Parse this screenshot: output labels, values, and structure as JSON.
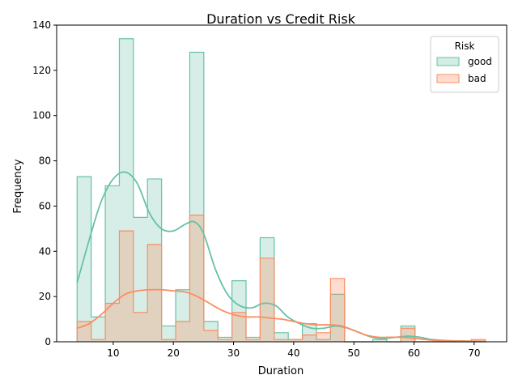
{
  "chart_data": {
    "type": "histogram",
    "title": "Duration vs Credit Risk",
    "xlabel": "Duration",
    "ylabel": "Frequency",
    "xlim": [
      0.6,
      75.4
    ],
    "ylim": [
      0,
      140
    ],
    "xticks": [
      10,
      20,
      30,
      40,
      50,
      60,
      70
    ],
    "yticks": [
      0,
      20,
      40,
      60,
      80,
      100,
      120,
      140
    ],
    "legend": {
      "title": "Risk",
      "position": "top-right"
    },
    "bin_edges": [
      4.0,
      6.34,
      8.68,
      11.02,
      13.36,
      15.7,
      18.04,
      20.38,
      22.72,
      25.06,
      27.4,
      29.74,
      32.08,
      34.42,
      36.76,
      39.1,
      41.44,
      43.78,
      46.12,
      48.46,
      50.8,
      53.14,
      55.48,
      57.82,
      60.16,
      62.5,
      64.84,
      67.18,
      69.52,
      71.86
    ],
    "series": [
      {
        "name": "good",
        "color": "#66c2a5",
        "counts": [
          73,
          11,
          69,
          134,
          55,
          72,
          7,
          23,
          128,
          9,
          2,
          27,
          2,
          46,
          4,
          1,
          8,
          1,
          21,
          0,
          0,
          1,
          0,
          7,
          0,
          0,
          0,
          0,
          0
        ],
        "kde": [
          [
            4,
            26
          ],
          [
            6,
            45
          ],
          [
            8,
            62
          ],
          [
            10,
            72
          ],
          [
            12,
            75
          ],
          [
            14,
            70
          ],
          [
            16,
            57
          ],
          [
            18,
            50
          ],
          [
            20,
            49
          ],
          [
            22,
            52
          ],
          [
            23.5,
            53
          ],
          [
            25,
            48
          ],
          [
            27,
            32
          ],
          [
            29,
            21
          ],
          [
            31,
            16
          ],
          [
            33,
            15
          ],
          [
            35,
            17
          ],
          [
            37,
            16
          ],
          [
            39,
            11
          ],
          [
            41,
            8
          ],
          [
            43,
            6
          ],
          [
            45,
            6
          ],
          [
            47,
            7
          ],
          [
            49,
            6
          ],
          [
            51,
            4
          ],
          [
            53,
            2
          ],
          [
            55,
            1.5
          ],
          [
            57,
            2
          ],
          [
            59,
            2.5
          ],
          [
            61,
            2
          ],
          [
            63,
            1
          ],
          [
            66,
            0.5
          ],
          [
            72,
            0.2
          ]
        ]
      },
      {
        "name": "bad",
        "color": "#fc8d62",
        "counts": [
          9,
          1,
          17,
          49,
          13,
          43,
          1,
          9,
          56,
          5,
          1,
          13,
          1,
          37,
          1,
          1,
          3,
          4,
          28,
          0,
          0,
          0,
          0,
          6,
          0,
          0,
          0,
          0,
          1
        ],
        "kde": [
          [
            4,
            6
          ],
          [
            6,
            8
          ],
          [
            8,
            12
          ],
          [
            10,
            17
          ],
          [
            12,
            21
          ],
          [
            14,
            22.5
          ],
          [
            16,
            23
          ],
          [
            18,
            23
          ],
          [
            20,
            22.5
          ],
          [
            22,
            22
          ],
          [
            24,
            20
          ],
          [
            26,
            17
          ],
          [
            28,
            14
          ],
          [
            30,
            12
          ],
          [
            32,
            11
          ],
          [
            34,
            11
          ],
          [
            36,
            10.5
          ],
          [
            38,
            10
          ],
          [
            40,
            9
          ],
          [
            42,
            8
          ],
          [
            44,
            7.5
          ],
          [
            46,
            7.5
          ],
          [
            48,
            7
          ],
          [
            50,
            5
          ],
          [
            52,
            3
          ],
          [
            54,
            2
          ],
          [
            56,
            2
          ],
          [
            58,
            2
          ],
          [
            60,
            1.5
          ],
          [
            62,
            1
          ],
          [
            64,
            0.5
          ],
          [
            68,
            0.3
          ],
          [
            72,
            0.2
          ]
        ]
      }
    ]
  }
}
